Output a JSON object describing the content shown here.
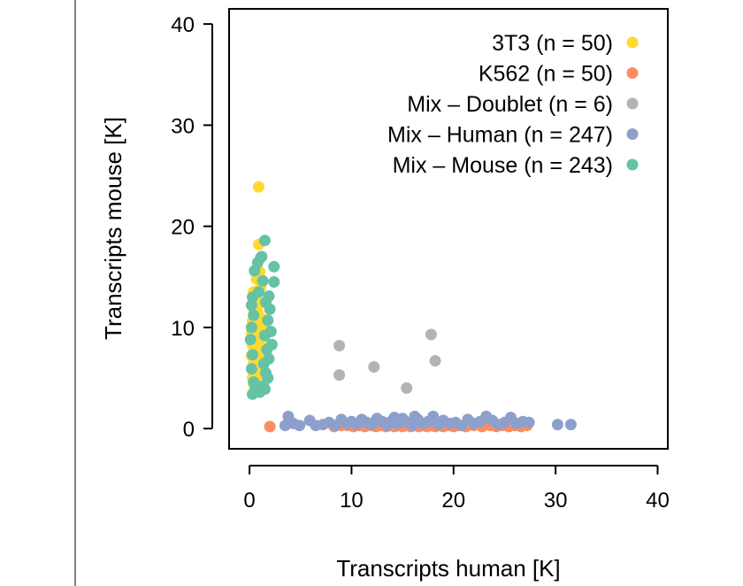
{
  "chart_data": {
    "type": "scatter",
    "xlabel": "Transcripts human [K]",
    "ylabel": "Transcripts mouse [K]",
    "xlim": [
      -2,
      41
    ],
    "ylim": [
      -2,
      41.5
    ],
    "xticks": [
      "0",
      "10",
      "20",
      "30",
      "40"
    ],
    "yticks": [
      "0",
      "10",
      "20",
      "30",
      "40"
    ],
    "legend_position": "top-right",
    "series": [
      {
        "name": "3T3 (n = 50)",
        "color": "#FFD92F",
        "points": [
          [
            0.9,
            23.9
          ],
          [
            0.9,
            18.2
          ],
          [
            1.0,
            15.5
          ],
          [
            0.7,
            14.8
          ],
          [
            0.5,
            12.8
          ],
          [
            1.1,
            12.4
          ],
          [
            0.4,
            11.8
          ],
          [
            0.8,
            11.5
          ],
          [
            0.6,
            11.0
          ],
          [
            1.2,
            10.9
          ],
          [
            0.3,
            10.6
          ],
          [
            0.9,
            10.4
          ],
          [
            0.5,
            10.1
          ],
          [
            1.3,
            9.9
          ],
          [
            0.7,
            9.7
          ],
          [
            0.2,
            9.5
          ],
          [
            1.0,
            9.3
          ],
          [
            0.6,
            9.1
          ],
          [
            1.4,
            9.0
          ],
          [
            0.4,
            8.8
          ],
          [
            0.8,
            8.6
          ],
          [
            1.1,
            8.4
          ],
          [
            0.3,
            8.2
          ],
          [
            0.7,
            8.0
          ],
          [
            1.2,
            7.8
          ],
          [
            0.5,
            7.6
          ],
          [
            0.9,
            7.4
          ],
          [
            0.2,
            7.2
          ],
          [
            1.3,
            7.0
          ],
          [
            0.6,
            6.8
          ],
          [
            0.8,
            6.6
          ],
          [
            0.4,
            6.4
          ],
          [
            1.0,
            6.2
          ],
          [
            0.3,
            6.0
          ],
          [
            1.1,
            5.8
          ],
          [
            0.7,
            5.6
          ],
          [
            0.5,
            5.4
          ],
          [
            0.9,
            5.2
          ],
          [
            0.3,
            5.0
          ],
          [
            1.2,
            4.8
          ],
          [
            0.6,
            4.6
          ],
          [
            0.4,
            4.4
          ],
          [
            1.4,
            4.3
          ],
          [
            0.8,
            4.2
          ],
          [
            0.5,
            8.9
          ],
          [
            1.0,
            10.2
          ],
          [
            0.7,
            12.0
          ],
          [
            0.4,
            13.5
          ],
          [
            1.1,
            14.0
          ],
          [
            0.6,
            9.6
          ]
        ]
      },
      {
        "name": "K562 (n = 50)",
        "color": "#FC8D62",
        "points": [
          [
            2.0,
            0.2
          ],
          [
            8.3,
            0.2
          ],
          [
            9.0,
            0.3
          ],
          [
            9.6,
            0.3
          ],
          [
            10.2,
            0.2
          ],
          [
            10.8,
            0.3
          ],
          [
            11.3,
            0.2
          ],
          [
            11.9,
            0.3
          ],
          [
            12.4,
            0.2
          ],
          [
            12.9,
            0.3
          ],
          [
            13.4,
            0.2
          ],
          [
            13.8,
            0.3
          ],
          [
            14.2,
            0.2
          ],
          [
            14.6,
            0.3
          ],
          [
            15.0,
            0.2
          ],
          [
            15.4,
            0.3
          ],
          [
            15.8,
            0.2
          ],
          [
            16.2,
            0.3
          ],
          [
            16.6,
            0.2
          ],
          [
            17.0,
            0.3
          ],
          [
            17.4,
            0.2
          ],
          [
            17.8,
            0.3
          ],
          [
            18.2,
            0.2
          ],
          [
            18.6,
            0.3
          ],
          [
            19.0,
            0.2
          ],
          [
            19.5,
            0.3
          ],
          [
            20.0,
            0.2
          ],
          [
            20.5,
            0.3
          ],
          [
            21.2,
            0.2
          ],
          [
            22.0,
            0.3
          ],
          [
            22.8,
            0.2
          ],
          [
            23.6,
            0.3
          ],
          [
            24.2,
            0.2
          ],
          [
            24.8,
            0.3
          ],
          [
            25.4,
            0.2
          ],
          [
            26.0,
            0.3
          ],
          [
            26.6,
            0.2
          ],
          [
            27.2,
            0.3
          ],
          [
            10.5,
            0.5
          ],
          [
            12.0,
            0.5
          ],
          [
            13.2,
            0.6
          ],
          [
            14.5,
            0.5
          ],
          [
            15.6,
            0.6
          ],
          [
            16.8,
            0.5
          ],
          [
            17.6,
            0.6
          ],
          [
            18.9,
            0.5
          ],
          [
            8.8,
            0.4
          ],
          [
            11.6,
            0.4
          ],
          [
            19.8,
            0.4
          ],
          [
            23.0,
            0.4
          ]
        ]
      },
      {
        "name": "Mix – Doublet (n = 6)",
        "color": "#B3B3B3",
        "points": [
          [
            8.8,
            8.2
          ],
          [
            8.8,
            5.3
          ],
          [
            12.2,
            6.1
          ],
          [
            15.4,
            4.0
          ],
          [
            17.8,
            9.3
          ],
          [
            18.2,
            6.7
          ]
        ]
      },
      {
        "name": "Mix – Human (n = 247)",
        "color": "#8DA0CB",
        "points": [
          [
            3.8,
            1.2
          ],
          [
            4.3,
            0.5
          ],
          [
            4.9,
            0.3
          ],
          [
            5.9,
            0.8
          ],
          [
            6.5,
            0.3
          ],
          [
            7.2,
            0.4
          ],
          [
            7.8,
            0.6
          ],
          [
            8.4,
            0.3
          ],
          [
            9.0,
            0.9
          ],
          [
            9.5,
            0.5
          ],
          [
            10.0,
            0.7
          ],
          [
            10.5,
            0.4
          ],
          [
            11.0,
            0.9
          ],
          [
            11.5,
            0.6
          ],
          [
            12.0,
            0.4
          ],
          [
            12.5,
            1.0
          ],
          [
            13.0,
            0.7
          ],
          [
            13.5,
            0.3
          ],
          [
            14.0,
            0.8
          ],
          [
            14.5,
            0.5
          ],
          [
            15.0,
            1.0
          ],
          [
            15.5,
            0.6
          ],
          [
            16.0,
            0.3
          ],
          [
            16.5,
            0.9
          ],
          [
            17.0,
            0.5
          ],
          [
            17.5,
            0.7
          ],
          [
            18.0,
            1.2
          ],
          [
            18.5,
            0.4
          ],
          [
            19.0,
            0.8
          ],
          [
            19.6,
            0.5
          ],
          [
            20.2,
            0.6
          ],
          [
            20.8,
            0.3
          ],
          [
            21.4,
            0.9
          ],
          [
            22.0,
            0.5
          ],
          [
            22.6,
            0.7
          ],
          [
            23.2,
            1.2
          ],
          [
            23.8,
            0.8
          ],
          [
            24.4,
            0.4
          ],
          [
            25.0,
            0.6
          ],
          [
            25.6,
            1.1
          ],
          [
            26.2,
            0.5
          ],
          [
            26.8,
            0.7
          ],
          [
            27.4,
            0.6
          ],
          [
            30.2,
            0.4
          ],
          [
            31.5,
            0.4
          ],
          [
            3.5,
            0.3
          ],
          [
            16.2,
            1.2
          ],
          [
            14.2,
            1.1
          ]
        ]
      },
      {
        "name": "Mix – Mouse (n = 243)",
        "color": "#66C2A5",
        "points": [
          [
            1.5,
            18.6
          ],
          [
            1.2,
            17.0
          ],
          [
            0.8,
            16.4
          ],
          [
            2.4,
            16.0
          ],
          [
            0.5,
            15.6
          ],
          [
            1.3,
            14.6
          ],
          [
            2.4,
            14.5
          ],
          [
            0.9,
            13.5
          ],
          [
            0.3,
            13.0
          ],
          [
            1.6,
            12.5
          ],
          [
            2.0,
            11.8
          ],
          [
            0.4,
            11.2
          ],
          [
            1.8,
            10.7
          ],
          [
            0.2,
            10.0
          ],
          [
            2.1,
            9.6
          ],
          [
            1.5,
            9.2
          ],
          [
            0.1,
            8.8
          ],
          [
            2.2,
            8.3
          ],
          [
            1.7,
            7.8
          ],
          [
            0.3,
            7.3
          ],
          [
            1.9,
            6.9
          ],
          [
            1.4,
            6.4
          ],
          [
            0.2,
            5.9
          ],
          [
            1.6,
            5.5
          ],
          [
            1.8,
            5.0
          ],
          [
            0.4,
            4.6
          ],
          [
            1.3,
            4.2
          ],
          [
            0.5,
            3.7
          ],
          [
            0.3,
            3.4
          ],
          [
            1.0,
            3.6
          ],
          [
            1.5,
            3.9
          ],
          [
            0.2,
            12.2
          ],
          [
            1.9,
            13.1
          ],
          [
            1.1,
            16.9
          ]
        ]
      }
    ]
  }
}
